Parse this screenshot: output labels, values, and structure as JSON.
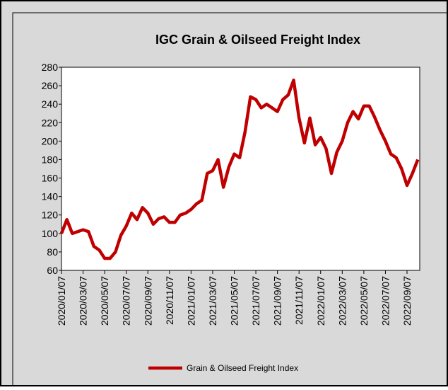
{
  "chart_data": {
    "type": "line",
    "title": "IGC Grain & Oilseed Freight Index",
    "categories": [
      "2020/01/07",
      null,
      null,
      null,
      "2020/03/07",
      null,
      null,
      null,
      "2020/05/07",
      null,
      null,
      null,
      "2020/07/07",
      null,
      null,
      null,
      "2020/09/07",
      null,
      null,
      null,
      "2020/11/07",
      null,
      null,
      null,
      "2021/01/07",
      null,
      null,
      null,
      "2021/03/07",
      null,
      null,
      null,
      "2021/05/07",
      null,
      null,
      null,
      "2021/07/07",
      null,
      null,
      null,
      "2021/09/07",
      null,
      null,
      null,
      "2021/11/07",
      null,
      null,
      null,
      "2022/01/07",
      null,
      null,
      null,
      "2022/03/07",
      null,
      null,
      null,
      "2022/05/07",
      null,
      null,
      null,
      "2022/07/07",
      null,
      null,
      null,
      "2022/09/07",
      null,
      null
    ],
    "series": [
      {
        "name": "Grain & Oilseed Freight Index",
        "color": "#c00000",
        "values": [
          100,
          115,
          100,
          102,
          104,
          102,
          86,
          82,
          73,
          73,
          80,
          98,
          108,
          122,
          115,
          128,
          122,
          110,
          116,
          118,
          112,
          112,
          120,
          122,
          126,
          132,
          136,
          165,
          168,
          180,
          150,
          172,
          186,
          182,
          210,
          248,
          245,
          236,
          240,
          236,
          232,
          245,
          250,
          266,
          225,
          198,
          225,
          196,
          204,
          192,
          165,
          188,
          200,
          220,
          232,
          224,
          238,
          238,
          226,
          212,
          200,
          186,
          182,
          170,
          152,
          165,
          180
        ]
      }
    ],
    "ylim": [
      60,
      280
    ],
    "yticks": [
      60,
      80,
      100,
      120,
      140,
      160,
      180,
      200,
      220,
      240,
      260,
      280
    ],
    "grid": false,
    "legend": "bottom"
  }
}
